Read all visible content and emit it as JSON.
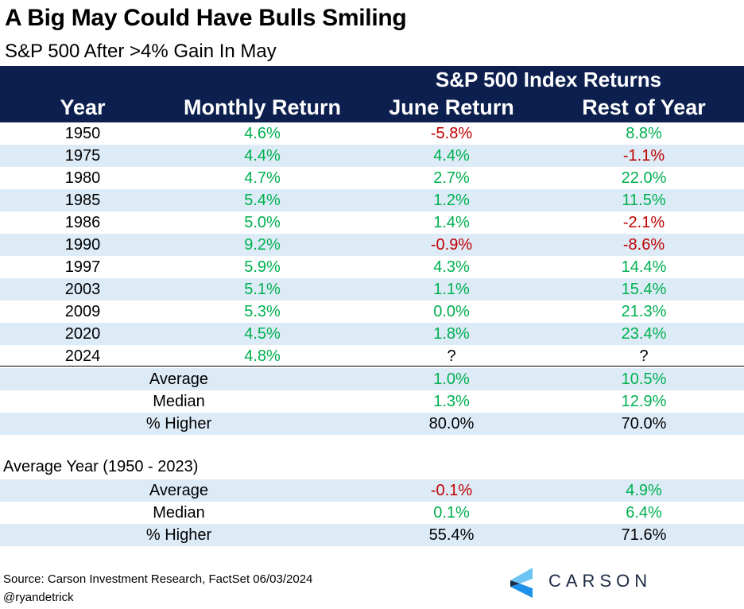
{
  "title": "A Big May Could Have Bulls Smiling",
  "subtitle": "S&P 500 After >4% Gain In May",
  "header": {
    "group": "S&P 500 Index Returns",
    "columns": [
      "Year",
      "Monthly Return",
      "June Return",
      "Rest of Year"
    ]
  },
  "rows": [
    {
      "year": "1950",
      "monthly": "4.6%",
      "june": "-5.8%",
      "rest": "8.8%"
    },
    {
      "year": "1975",
      "monthly": "4.4%",
      "june": "4.4%",
      "rest": "-1.1%"
    },
    {
      "year": "1980",
      "monthly": "4.7%",
      "june": "2.7%",
      "rest": "22.0%"
    },
    {
      "year": "1985",
      "monthly": "5.4%",
      "june": "1.2%",
      "rest": "11.5%"
    },
    {
      "year": "1986",
      "monthly": "5.0%",
      "june": "1.4%",
      "rest": "-2.1%"
    },
    {
      "year": "1990",
      "monthly": "9.2%",
      "june": "-0.9%",
      "rest": "-8.6%"
    },
    {
      "year": "1997",
      "monthly": "5.9%",
      "june": "4.3%",
      "rest": "14.4%"
    },
    {
      "year": "2003",
      "monthly": "5.1%",
      "june": "1.1%",
      "rest": "15.4%"
    },
    {
      "year": "2009",
      "monthly": "5.3%",
      "june": "0.0%",
      "rest": "21.3%"
    },
    {
      "year": "2020",
      "monthly": "4.5%",
      "june": "1.8%",
      "rest": "23.4%"
    },
    {
      "year": "2024",
      "monthly": "4.8%",
      "june": "?",
      "rest": "?"
    }
  ],
  "summary": [
    {
      "label": "Average",
      "june": "1.0%",
      "rest": "10.5%"
    },
    {
      "label": "Median",
      "june": "1.3%",
      "rest": "12.9%"
    },
    {
      "label": "% Higher",
      "june": "80.0%",
      "rest": "70.0%"
    }
  ],
  "avg_section": {
    "label": "Average Year (1950 - 2023)",
    "rows": [
      {
        "label": "Average",
        "june": "-0.1%",
        "rest": "4.9%"
      },
      {
        "label": "Median",
        "june": "0.1%",
        "rest": "6.4%"
      },
      {
        "label": "% Higher",
        "june": "55.4%",
        "rest": "71.6%"
      }
    ]
  },
  "source": "Source: Carson Investment Research, FactSet 06/03/2024",
  "handle": "@ryandetrick",
  "logo": "CARSON",
  "colors": {
    "header": "#0c1f4e",
    "positive": "#00b050",
    "negative": "#c00000",
    "band": "#ddebf7"
  }
}
